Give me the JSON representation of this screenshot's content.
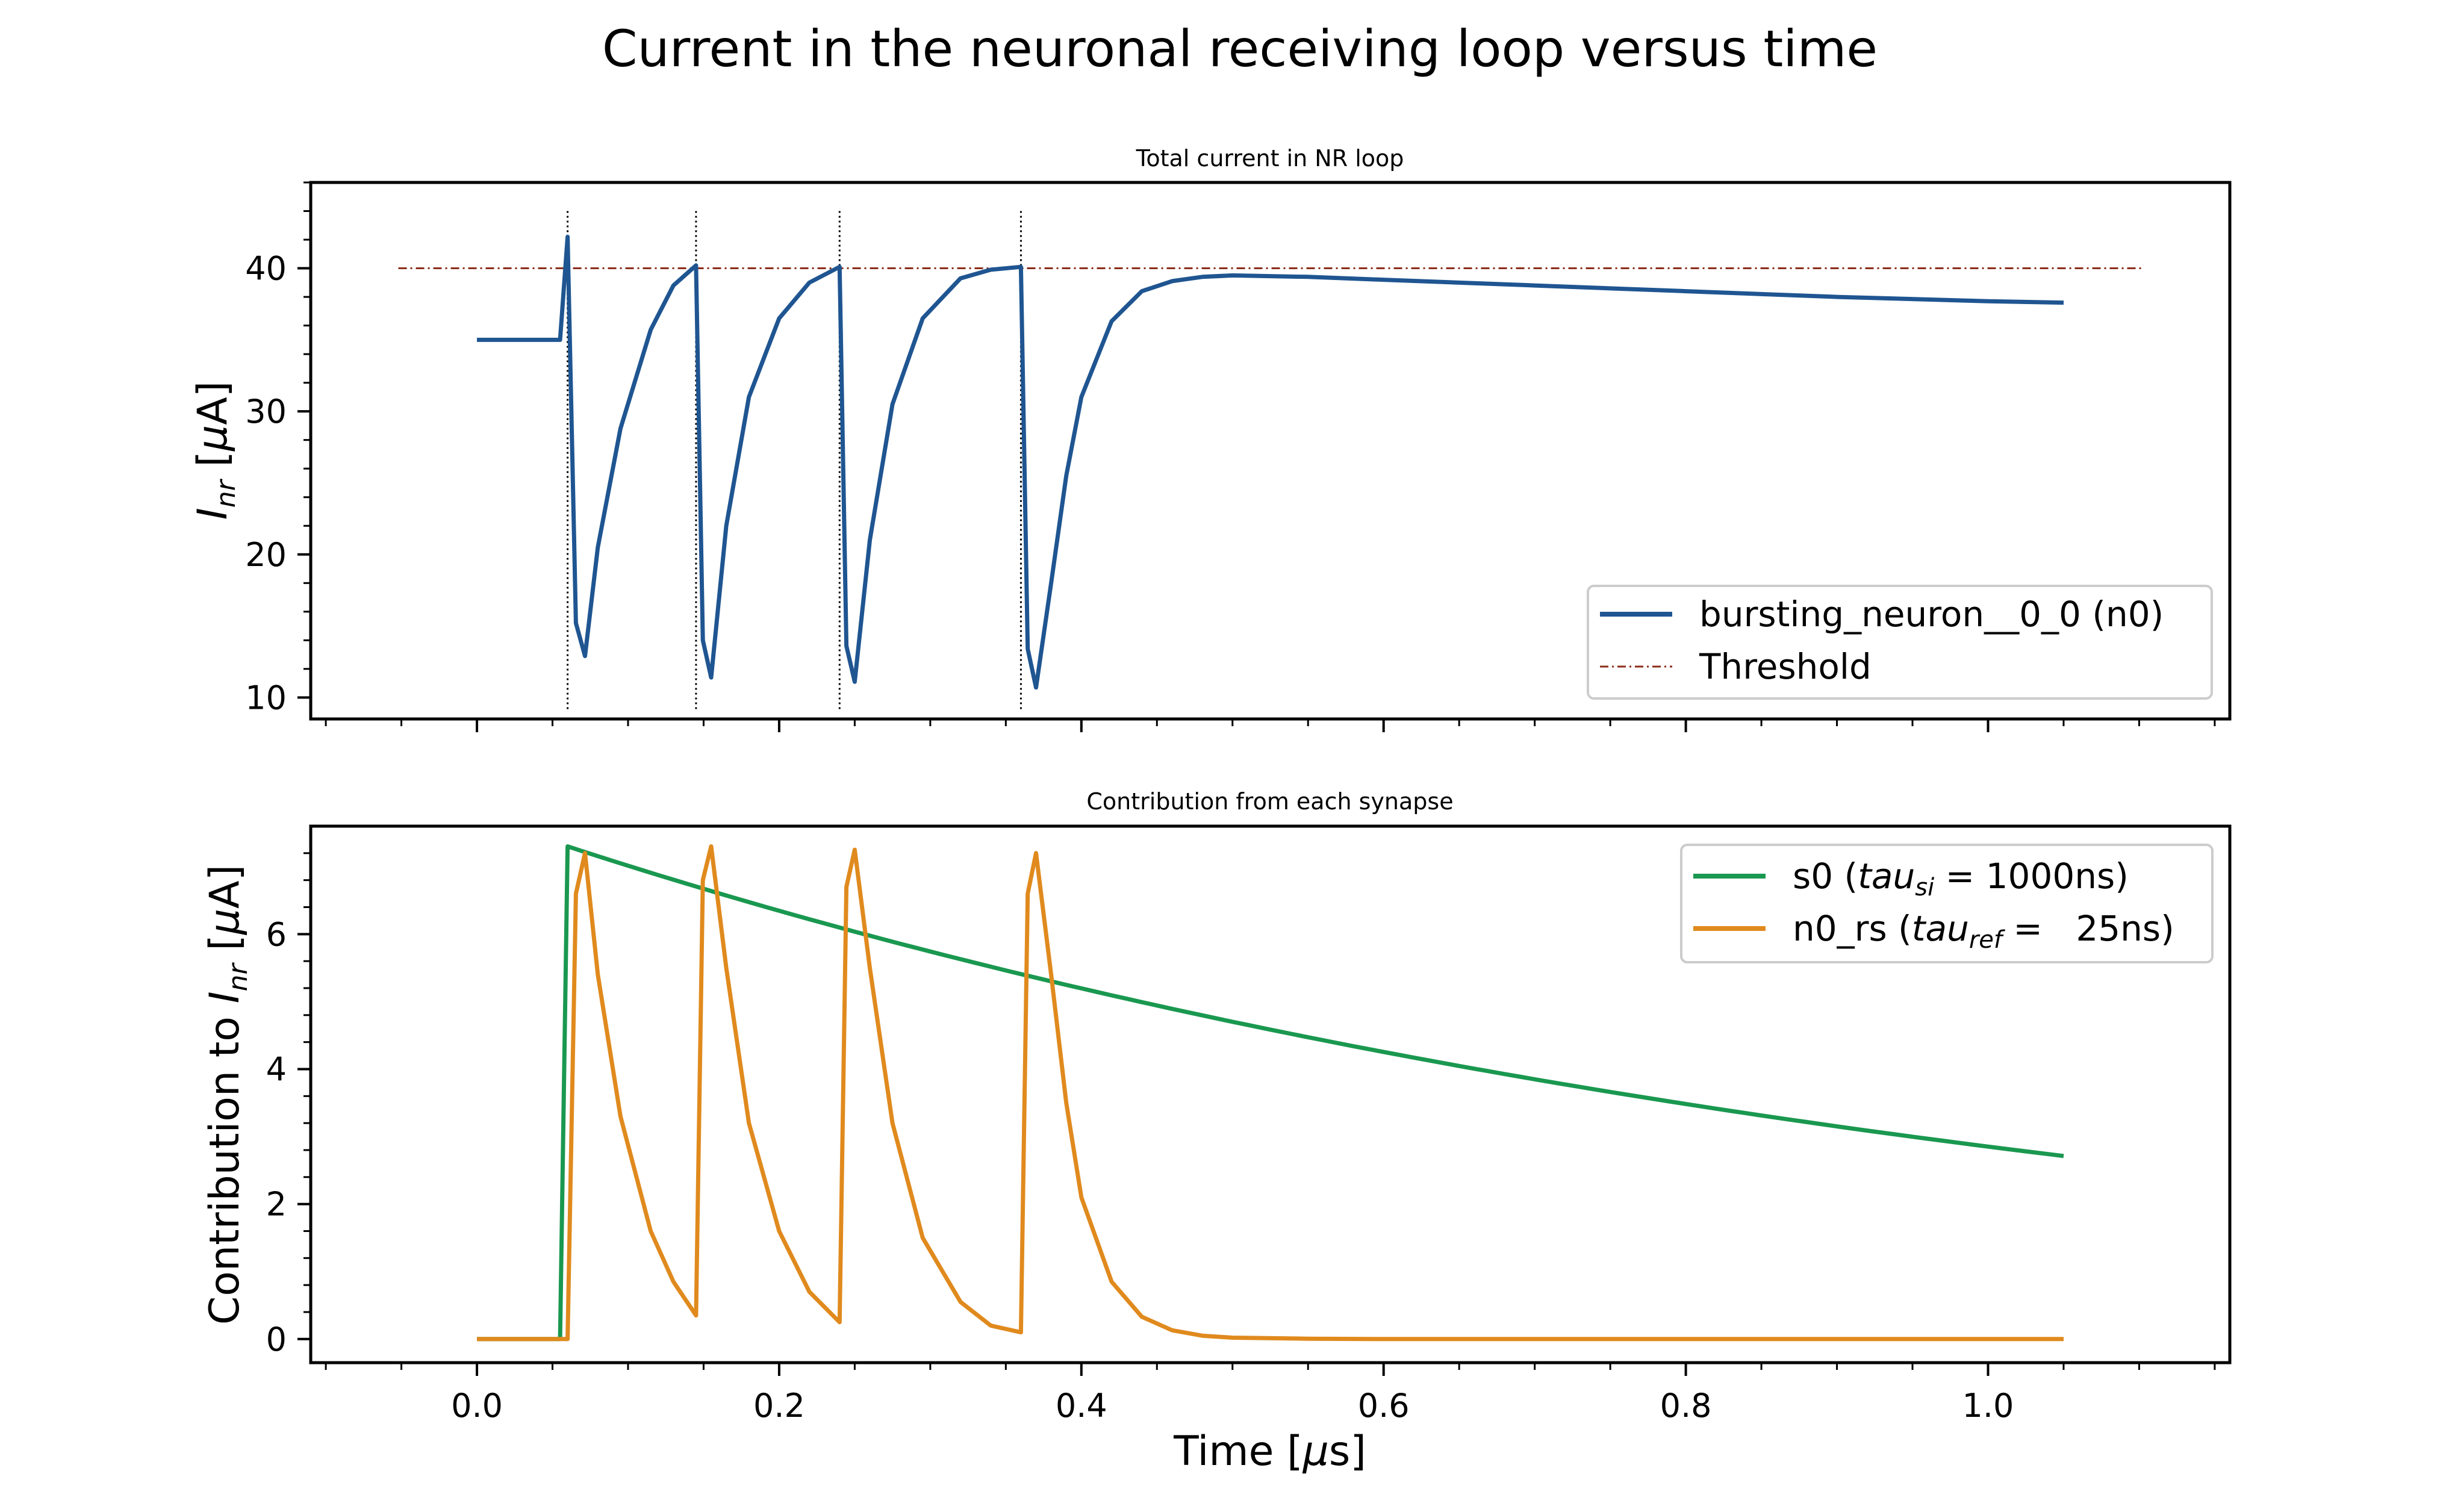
{
  "figure": {
    "suptitle": "Current in the neuronal receiving loop versus time",
    "xlabel": "Time [μs]"
  },
  "colors": {
    "neuron": "#1f5591",
    "threshold": "#8b2d1a",
    "s0": "#1a9850",
    "n0_rs": "#e08a1e"
  },
  "chart_data": [
    {
      "type": "line",
      "title": "Total current in NR loop",
      "ylabel": "I_nr [μA]",
      "xlim": [
        -0.11,
        1.16
      ],
      "ylim": [
        8.5,
        46.0
      ],
      "xticks": [
        0.0,
        0.2,
        0.4,
        0.6,
        0.8,
        1.0
      ],
      "xtick_labels": [
        "0.0",
        "0.2",
        "0.4",
        "0.6",
        "0.8",
        "1.0"
      ],
      "yticks": [
        10,
        20,
        30,
        40
      ],
      "ytick_labels": [
        "10",
        "20",
        "30",
        "40"
      ],
      "legend": {
        "position": "lower-right",
        "entries": [
          "bursting_neuron__0_0 (n0)",
          "Threshold"
        ]
      },
      "spike_times": [
        0.06,
        0.145,
        0.24,
        0.36
      ],
      "series": [
        {
          "name": "bursting_neuron__0_0 (n0)",
          "style": "solid",
          "x": [
            0.0,
            0.055,
            0.06,
            0.0655,
            0.0715,
            0.08,
            0.095,
            0.115,
            0.13,
            0.145,
            0.1495,
            0.155,
            0.165,
            0.18,
            0.2,
            0.22,
            0.24,
            0.2445,
            0.25,
            0.26,
            0.275,
            0.295,
            0.32,
            0.34,
            0.36,
            0.3645,
            0.37,
            0.38,
            0.39,
            0.4,
            0.42,
            0.44,
            0.46,
            0.48,
            0.5,
            0.55,
            0.6,
            0.7,
            0.8,
            0.9,
            1.0,
            1.05
          ],
          "y": [
            35.0,
            35.0,
            42.2,
            15.2,
            12.9,
            20.5,
            28.8,
            35.7,
            38.8,
            40.2,
            14.0,
            11.4,
            22.0,
            31.0,
            36.5,
            39.0,
            40.1,
            13.6,
            11.1,
            21.0,
            30.5,
            36.5,
            39.3,
            39.9,
            40.1,
            13.4,
            10.7,
            18.0,
            25.5,
            31.0,
            36.3,
            38.4,
            39.1,
            39.4,
            39.5,
            39.4,
            39.2,
            38.8,
            38.4,
            38.0,
            37.7,
            37.6
          ]
        },
        {
          "name": "Threshold",
          "style": "dashdot",
          "x": [
            -0.052,
            1.102
          ],
          "y": [
            40.0,
            40.0
          ]
        }
      ]
    },
    {
      "type": "line",
      "title": "Contribution from each synapse",
      "ylabel": "Contribution to I_nr [μA]",
      "xlim": [
        -0.11,
        1.16
      ],
      "ylim": [
        -0.35,
        7.6
      ],
      "xticks": [
        0.0,
        0.2,
        0.4,
        0.6,
        0.8,
        1.0
      ],
      "xtick_labels": [
        "0.0",
        "0.2",
        "0.4",
        "0.6",
        "0.8",
        "1.0"
      ],
      "yticks": [
        0,
        2,
        4,
        6
      ],
      "ytick_labels": [
        "0",
        "2",
        "4",
        "6"
      ],
      "legend": {
        "position": "upper-right",
        "entries": [
          "s0 (tau_si = 1000ns)",
          "n0_rs (tau_ref =   25ns)"
        ]
      },
      "series": [
        {
          "name": "s0 (tau_si = 1000ns)",
          "tau_ns": 1000,
          "peak": 7.3,
          "onset": 0.055,
          "rise_end": 0.06,
          "x": [
            0.0,
            0.055,
            0.06,
            0.1,
            0.2,
            0.3,
            0.4,
            0.5,
            0.6,
            0.7,
            0.8,
            0.9,
            1.0,
            1.05
          ],
          "y": [
            0.0,
            0.0,
            7.3,
            7.01,
            6.34,
            5.74,
            5.19,
            4.7,
            4.25,
            3.85,
            3.48,
            3.15,
            2.85,
            2.71
          ]
        },
        {
          "name": "n0_rs (tau_ref =   25ns)",
          "tau_ns": 25,
          "x": [
            0.0,
            0.06,
            0.0655,
            0.0715,
            0.08,
            0.095,
            0.115,
            0.13,
            0.145,
            0.1495,
            0.155,
            0.165,
            0.18,
            0.2,
            0.22,
            0.24,
            0.2445,
            0.25,
            0.26,
            0.275,
            0.295,
            0.32,
            0.34,
            0.36,
            0.3645,
            0.37,
            0.38,
            0.39,
            0.4,
            0.42,
            0.44,
            0.46,
            0.48,
            0.5,
            0.55,
            0.6,
            0.8,
            1.05
          ],
          "y": [
            0.0,
            0.0,
            6.6,
            7.2,
            5.4,
            3.3,
            1.6,
            0.85,
            0.35,
            6.8,
            7.3,
            5.5,
            3.2,
            1.6,
            0.7,
            0.25,
            6.7,
            7.25,
            5.5,
            3.2,
            1.5,
            0.55,
            0.2,
            0.1,
            6.6,
            7.2,
            5.4,
            3.5,
            2.1,
            0.85,
            0.33,
            0.13,
            0.05,
            0.02,
            0.005,
            0.0,
            0.0,
            0.0
          ]
        }
      ]
    }
  ]
}
